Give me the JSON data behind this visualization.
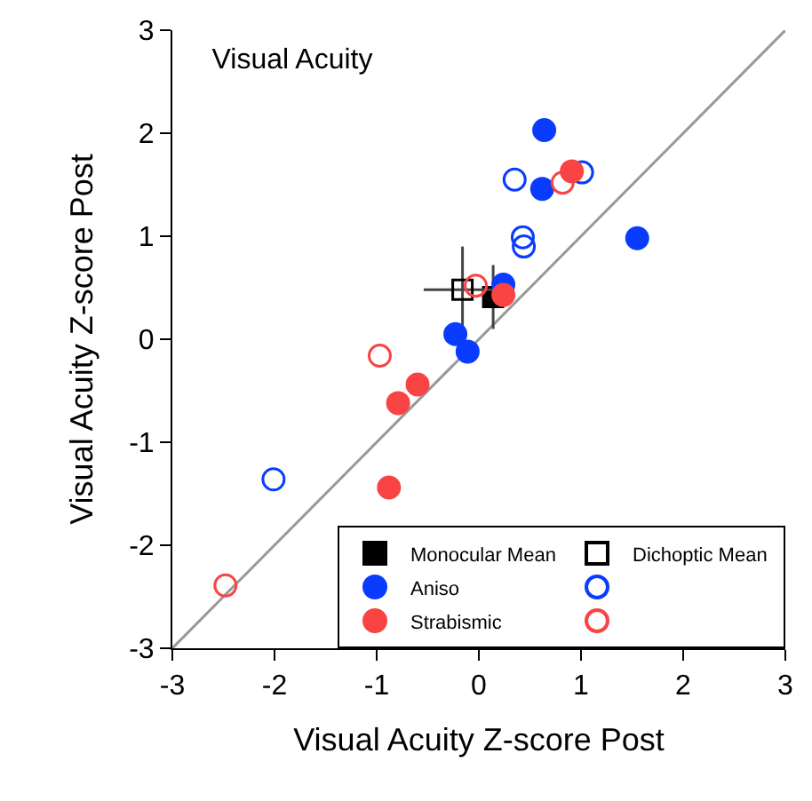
{
  "chart_data": {
    "type": "scatter",
    "title": "Visual Acuity",
    "xlabel": "Visual Acuity Z-score Post",
    "ylabel": "Visual Acuity Z-score Post",
    "xlim": [
      -3,
      3
    ],
    "ylim": [
      -3,
      3
    ],
    "xticks": [
      -3,
      -2,
      -1,
      0,
      1,
      2,
      3
    ],
    "yticks": [
      -3,
      -2,
      -1,
      0,
      1,
      2,
      3
    ],
    "legend": "bottom right",
    "series": [
      {
        "type": "line",
        "color": "#999999",
        "x": [
          -3,
          3
        ],
        "values": [
          -3,
          3
        ],
        "marker": "none"
      },
      {
        "name": "Monocular Mean",
        "color": "#000000",
        "marker": "square",
        "x": [
          0.14
        ],
        "values": [
          0.41
        ],
        "errors": [
          0.31
        ],
        "xerrors": [
          0.1
        ]
      },
      {
        "name": "Dichoptic Mean",
        "color": "#000000",
        "marker": "square-open",
        "x": [
          -0.16
        ],
        "values": [
          0.48
        ],
        "errors": [
          0.42
        ],
        "xerrors": [
          0.38
        ]
      },
      {
        "name": "Aniso",
        "color": "#0a3cff",
        "marker": "circle",
        "x": [
          0.64,
          0.62,
          1.55,
          0.24,
          -0.23,
          -0.11
        ],
        "values": [
          2.03,
          1.46,
          0.98,
          0.53,
          0.05,
          -0.12
        ]
      },
      {
        "color": "#0a3cff",
        "marker": "circle-open",
        "x": [
          0.35,
          1.01,
          0.43,
          0.44,
          -2.01
        ],
        "values": [
          1.55,
          1.62,
          0.99,
          0.9,
          -1.36
        ]
      },
      {
        "name": "Strabismic",
        "color": "#f94444",
        "marker": "circle",
        "x": [
          0.91,
          0.24,
          -0.6,
          -0.79,
          -0.88
        ],
        "values": [
          1.63,
          0.43,
          -0.44,
          -0.62,
          -1.44
        ]
      },
      {
        "color": "#f94444",
        "marker": "circle-open",
        "x": [
          0.82,
          -0.03,
          -0.97,
          -2.48
        ],
        "values": [
          1.52,
          0.52,
          -0.16,
          -2.39
        ]
      }
    ]
  }
}
